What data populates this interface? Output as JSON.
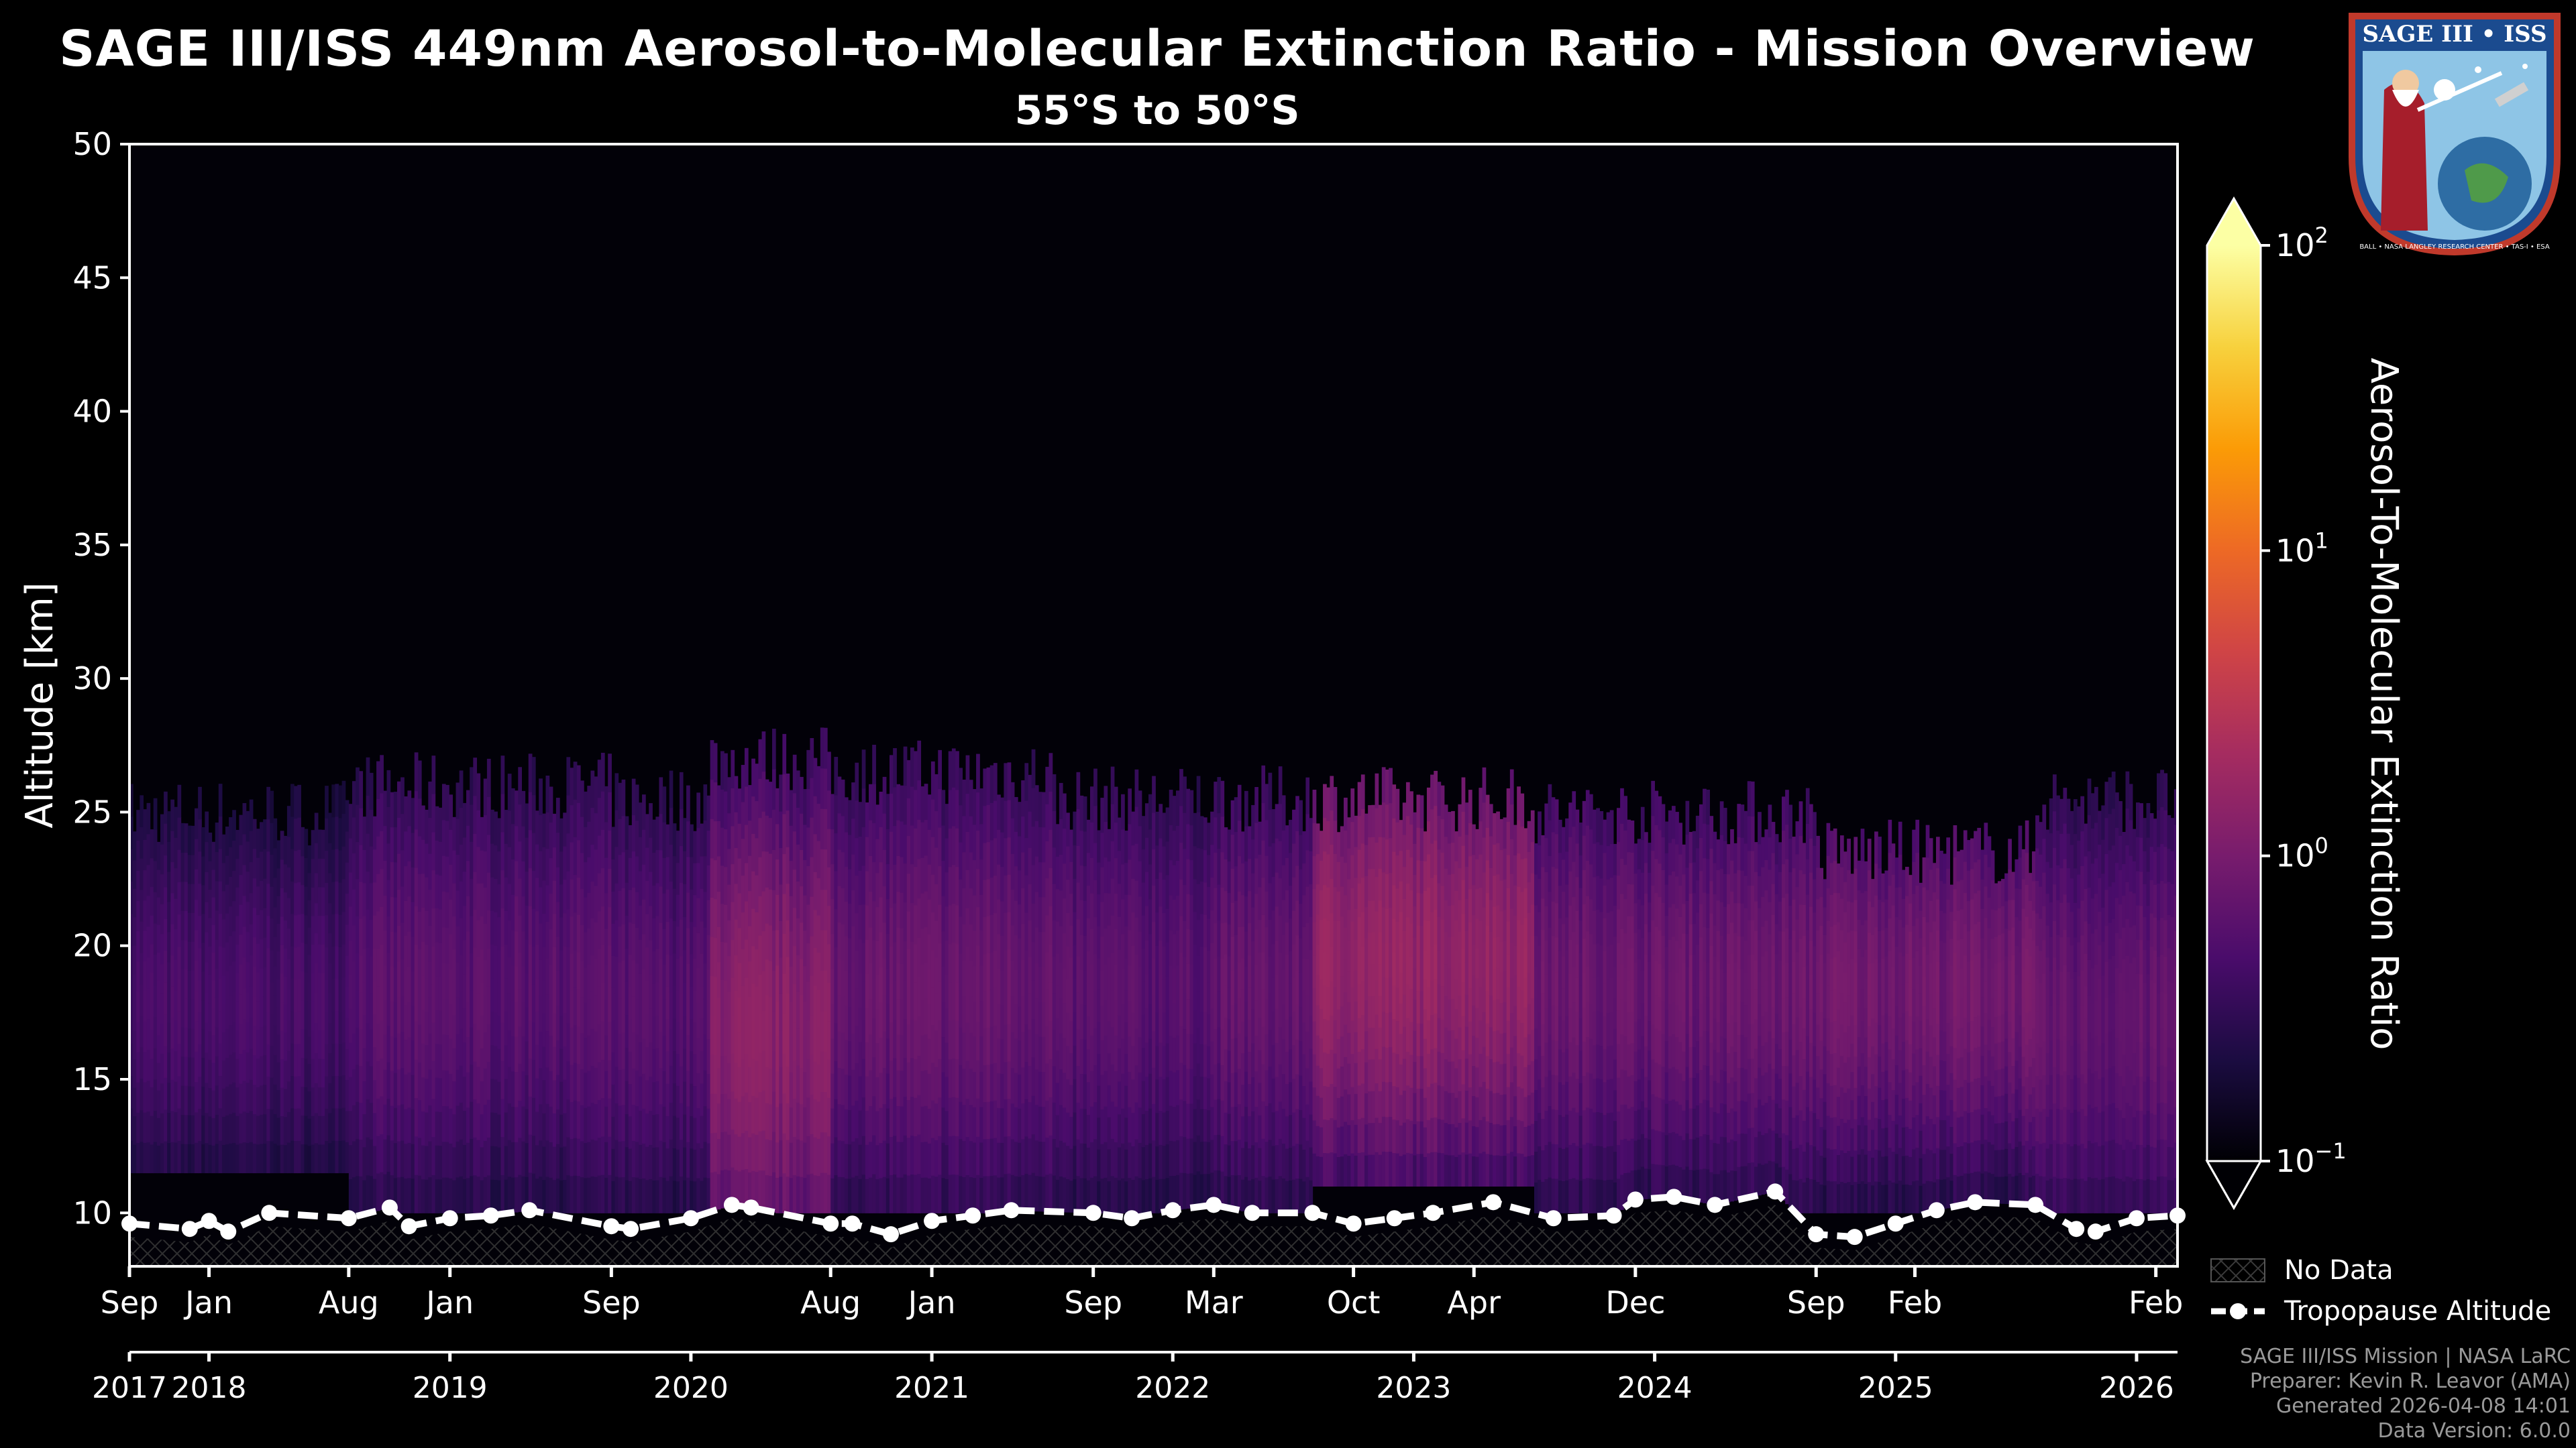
{
  "chart_data": {
    "type": "heatmap",
    "title": "SAGE III/ISS 449nm Aerosol-to-Molecular Extinction Ratio - Mission Overview",
    "subtitle": "55°S to 50°S",
    "ylabel": "Altitude [km]",
    "ylim": [
      8,
      50
    ],
    "yticks": [
      10,
      15,
      20,
      25,
      30,
      35,
      40,
      45,
      50
    ],
    "xlim": [
      2017.67,
      2026.17
    ],
    "month_ticks": [
      {
        "t": 2017.67,
        "label": "Sep"
      },
      {
        "t": 2018.0,
        "label": "Jan"
      },
      {
        "t": 2018.58,
        "label": "Aug"
      },
      {
        "t": 2019.0,
        "label": "Jan"
      },
      {
        "t": 2019.67,
        "label": "Sep"
      },
      {
        "t": 2020.58,
        "label": "Aug"
      },
      {
        "t": 2021.0,
        "label": "Jan"
      },
      {
        "t": 2021.67,
        "label": "Sep"
      },
      {
        "t": 2022.17,
        "label": "Mar"
      },
      {
        "t": 2022.75,
        "label": "Oct"
      },
      {
        "t": 2023.25,
        "label": "Apr"
      },
      {
        "t": 2023.92,
        "label": "Dec"
      },
      {
        "t": 2024.67,
        "label": "Sep"
      },
      {
        "t": 2025.08,
        "label": "Feb"
      },
      {
        "t": 2026.08,
        "label": "Feb"
      }
    ],
    "year_ticks": [
      {
        "t": 2017.67,
        "label": "2017"
      },
      {
        "t": 2018.0,
        "label": "2018"
      },
      {
        "t": 2019.0,
        "label": "2019"
      },
      {
        "t": 2020.0,
        "label": "2020"
      },
      {
        "t": 2021.0,
        "label": "2021"
      },
      {
        "t": 2022.0,
        "label": "2022"
      },
      {
        "t": 2023.0,
        "label": "2023"
      },
      {
        "t": 2024.0,
        "label": "2024"
      },
      {
        "t": 2025.0,
        "label": "2025"
      },
      {
        "t": 2026.0,
        "label": "2026"
      }
    ],
    "colorbar": {
      "label": "Aerosol-To-Molecular Extinction Ratio",
      "scale": "log",
      "ticks": [
        {
          "base": "10",
          "exp": "2",
          "value": 100
        },
        {
          "base": "10",
          "exp": "1",
          "value": 10
        },
        {
          "base": "10",
          "exp": "0",
          "value": 1
        },
        {
          "base": "10",
          "exp": "−1",
          "value": 0.1
        }
      ],
      "colors": [
        "#000004",
        "#1b0c41",
        "#4a0c6b",
        "#781c6d",
        "#a52c60",
        "#cf4446",
        "#ed6925",
        "#fb9b06",
        "#f7d13d",
        "#fcffa4"
      ]
    },
    "aerosol_layers": [
      {
        "t0": 2017.67,
        "t1": 2018.58,
        "bottom": 11.5,
        "top": 25.0,
        "peak": 18.0,
        "ratio": 0.45
      },
      {
        "t0": 2018.58,
        "t1": 2019.67,
        "bottom": 10.0,
        "top": 26.0,
        "peak": 18.5,
        "ratio": 0.6
      },
      {
        "t0": 2019.67,
        "t1": 2020.08,
        "bottom": 10.0,
        "top": 25.5,
        "peak": 18.0,
        "ratio": 0.55
      },
      {
        "t0": 2020.08,
        "t1": 2020.58,
        "bottom": 10.0,
        "top": 27.0,
        "peak": 17.0,
        "ratio": 1.3
      },
      {
        "t0": 2020.58,
        "t1": 2021.5,
        "bottom": 10.0,
        "top": 26.5,
        "peak": 18.5,
        "ratio": 0.75
      },
      {
        "t0": 2021.5,
        "t1": 2022.17,
        "bottom": 10.0,
        "top": 25.5,
        "peak": 18.5,
        "ratio": 0.6
      },
      {
        "t0": 2022.17,
        "t1": 2022.58,
        "bottom": 10.0,
        "top": 25.5,
        "peak": 18.5,
        "ratio": 0.7
      },
      {
        "t0": 2022.58,
        "t1": 2023.5,
        "bottom": 11.0,
        "top": 25.5,
        "peak": 19.5,
        "ratio": 1.6
      },
      {
        "t0": 2023.5,
        "t1": 2024.67,
        "bottom": 10.0,
        "top": 25.0,
        "peak": 18.5,
        "ratio": 0.8
      },
      {
        "t0": 2024.67,
        "t1": 2025.58,
        "bottom": 10.0,
        "top": 23.5,
        "peak": 18.5,
        "ratio": 0.9
      },
      {
        "t0": 2025.58,
        "t1": 2026.17,
        "bottom": 10.0,
        "top": 25.5,
        "peak": 17.5,
        "ratio": 0.7
      }
    ],
    "tropopause": {
      "t": [
        2017.67,
        2017.92,
        2018.0,
        2018.08,
        2018.25,
        2018.58,
        2018.75,
        2018.83,
        2019.0,
        2019.17,
        2019.33,
        2019.67,
        2019.75,
        2020.0,
        2020.17,
        2020.25,
        2020.58,
        2020.67,
        2020.83,
        2021.0,
        2021.17,
        2021.33,
        2021.67,
        2021.83,
        2022.0,
        2022.17,
        2022.33,
        2022.58,
        2022.75,
        2022.92,
        2023.08,
        2023.33,
        2023.58,
        2023.83,
        2023.92,
        2024.08,
        2024.25,
        2024.5,
        2024.67,
        2024.83,
        2025.0,
        2025.17,
        2025.33,
        2025.58,
        2025.75,
        2025.83,
        2026.0,
        2026.17
      ],
      "alt": [
        9.6,
        9.4,
        9.7,
        9.3,
        10.0,
        9.8,
        10.2,
        9.5,
        9.8,
        9.9,
        10.1,
        9.5,
        9.4,
        9.8,
        10.3,
        10.2,
        9.6,
        9.6,
        9.2,
        9.7,
        9.9,
        10.1,
        10.0,
        9.8,
        10.1,
        10.3,
        10.0,
        10.0,
        9.6,
        9.8,
        10.0,
        10.4,
        9.8,
        9.9,
        10.5,
        10.6,
        10.3,
        10.8,
        9.2,
        9.1,
        9.6,
        10.1,
        10.4,
        10.3,
        9.4,
        9.3,
        9.8,
        9.9
      ],
      "label": "Tropopause Altitude"
    },
    "legend": [
      {
        "label": "No Data",
        "style": "hatch"
      },
      {
        "label": "Tropopause Altitude",
        "style": "dashed-line-circle"
      }
    ]
  },
  "footer": {
    "line1": "SAGE III/ISS Mission | NASA LaRC",
    "line2": "Preparer: Kevin R. Leavor (AMA)",
    "line3": "Generated 2026-04-08 14:01",
    "line4": "Data Version: 6.0.0"
  },
  "logo": {
    "top_text": "SAGE III • ISS",
    "ring_text": "BALL • NASA LANGLEY RESEARCH CENTER • TAS-I • ESA"
  }
}
